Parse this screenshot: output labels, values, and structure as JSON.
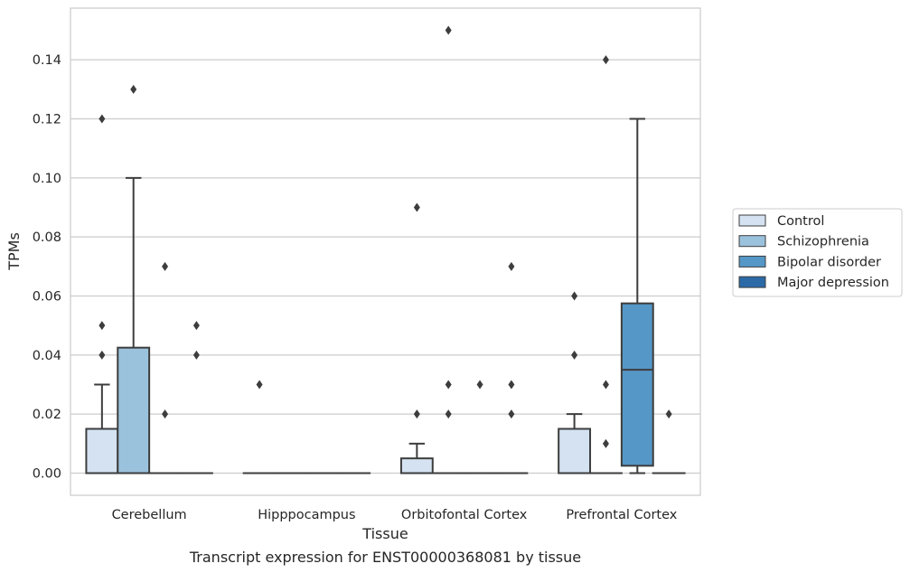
{
  "chart_data": {
    "type": "box",
    "xlabel": "Tissue",
    "ylabel": "TPMs",
    "caption": "Transcript expression for ENST00000368081 by tissue",
    "categories": [
      "Cerebellum",
      "Hipppocampus",
      "Orbitofontal Cortex",
      "Prefrontal Cortex"
    ],
    "ylim": [
      -0.0075,
      0.1575
    ],
    "yticks": [
      0.0,
      0.02,
      0.04,
      0.06,
      0.08,
      0.1,
      0.12,
      0.14
    ],
    "ytick_labels": [
      "0.00",
      "0.02",
      "0.04",
      "0.06",
      "0.08",
      "0.10",
      "0.12",
      "0.14"
    ],
    "grid": true,
    "legend_placement": "right",
    "series": [
      {
        "name": "Control",
        "color": "#d4e2f1",
        "boxes": [
          {
            "q1": 0.0,
            "median": 0.0,
            "q3": 0.015,
            "whisker_low": 0.0,
            "whisker_high": 0.03,
            "outliers": [
              0.04,
              0.05,
              0.12
            ]
          },
          {
            "q1": 0.0,
            "median": 0.0,
            "q3": 0.0,
            "whisker_low": 0.0,
            "whisker_high": 0.0,
            "outliers": [
              0.03
            ]
          },
          {
            "q1": 0.0,
            "median": 0.0,
            "q3": 0.005,
            "whisker_low": 0.0,
            "whisker_high": 0.01,
            "outliers": [
              0.02,
              0.09
            ]
          },
          {
            "q1": 0.0,
            "median": 0.0,
            "q3": 0.015,
            "whisker_low": 0.0,
            "whisker_high": 0.02,
            "outliers": [
              0.04,
              0.06
            ]
          }
        ]
      },
      {
        "name": "Schizophrenia",
        "color": "#9bc2dc",
        "boxes": [
          {
            "q1": 0.0,
            "median": 0.0,
            "q3": 0.0425,
            "whisker_low": 0.0,
            "whisker_high": 0.1,
            "outliers": [
              0.13
            ]
          },
          {
            "q1": 0.0,
            "median": 0.0,
            "q3": 0.0,
            "whisker_low": 0.0,
            "whisker_high": 0.0,
            "outliers": []
          },
          {
            "q1": 0.0,
            "median": 0.0,
            "q3": 0.0,
            "whisker_low": 0.0,
            "whisker_high": 0.0,
            "outliers": [
              0.02,
              0.03,
              0.15
            ]
          },
          {
            "q1": 0.0,
            "median": 0.0,
            "q3": 0.0,
            "whisker_low": 0.0,
            "whisker_high": 0.0,
            "outliers": [
              0.01,
              0.03,
              0.14
            ]
          }
        ]
      },
      {
        "name": "Bipolar disorder",
        "color": "#5597c7",
        "boxes": [
          {
            "q1": 0.0,
            "median": 0.0,
            "q3": 0.0,
            "whisker_low": 0.0,
            "whisker_high": 0.0,
            "outliers": [
              0.02,
              0.07
            ]
          },
          {
            "q1": 0.0,
            "median": 0.0,
            "q3": 0.0,
            "whisker_low": 0.0,
            "whisker_high": 0.0,
            "outliers": []
          },
          {
            "q1": 0.0,
            "median": 0.0,
            "q3": 0.0,
            "whisker_low": 0.0,
            "whisker_high": 0.0,
            "outliers": [
              0.03
            ]
          },
          {
            "q1": 0.0025,
            "median": 0.035,
            "q3": 0.0575,
            "whisker_low": 0.0,
            "whisker_high": 0.12,
            "outliers": []
          }
        ]
      },
      {
        "name": "Major depression",
        "color": "#2b6aa6",
        "boxes": [
          {
            "q1": 0.0,
            "median": 0.0,
            "q3": 0.0,
            "whisker_low": 0.0,
            "whisker_high": 0.0,
            "outliers": [
              0.04,
              0.05
            ]
          },
          {
            "q1": 0.0,
            "median": 0.0,
            "q3": 0.0,
            "whisker_low": 0.0,
            "whisker_high": 0.0,
            "outliers": []
          },
          {
            "q1": 0.0,
            "median": 0.0,
            "q3": 0.0,
            "whisker_low": 0.0,
            "whisker_high": 0.0,
            "outliers": [
              0.02,
              0.03,
              0.07
            ]
          },
          {
            "q1": 0.0,
            "median": 0.0,
            "q3": 0.0,
            "whisker_low": 0.0,
            "whisker_high": 0.0,
            "outliers": [
              0.02
            ]
          }
        ]
      }
    ]
  }
}
